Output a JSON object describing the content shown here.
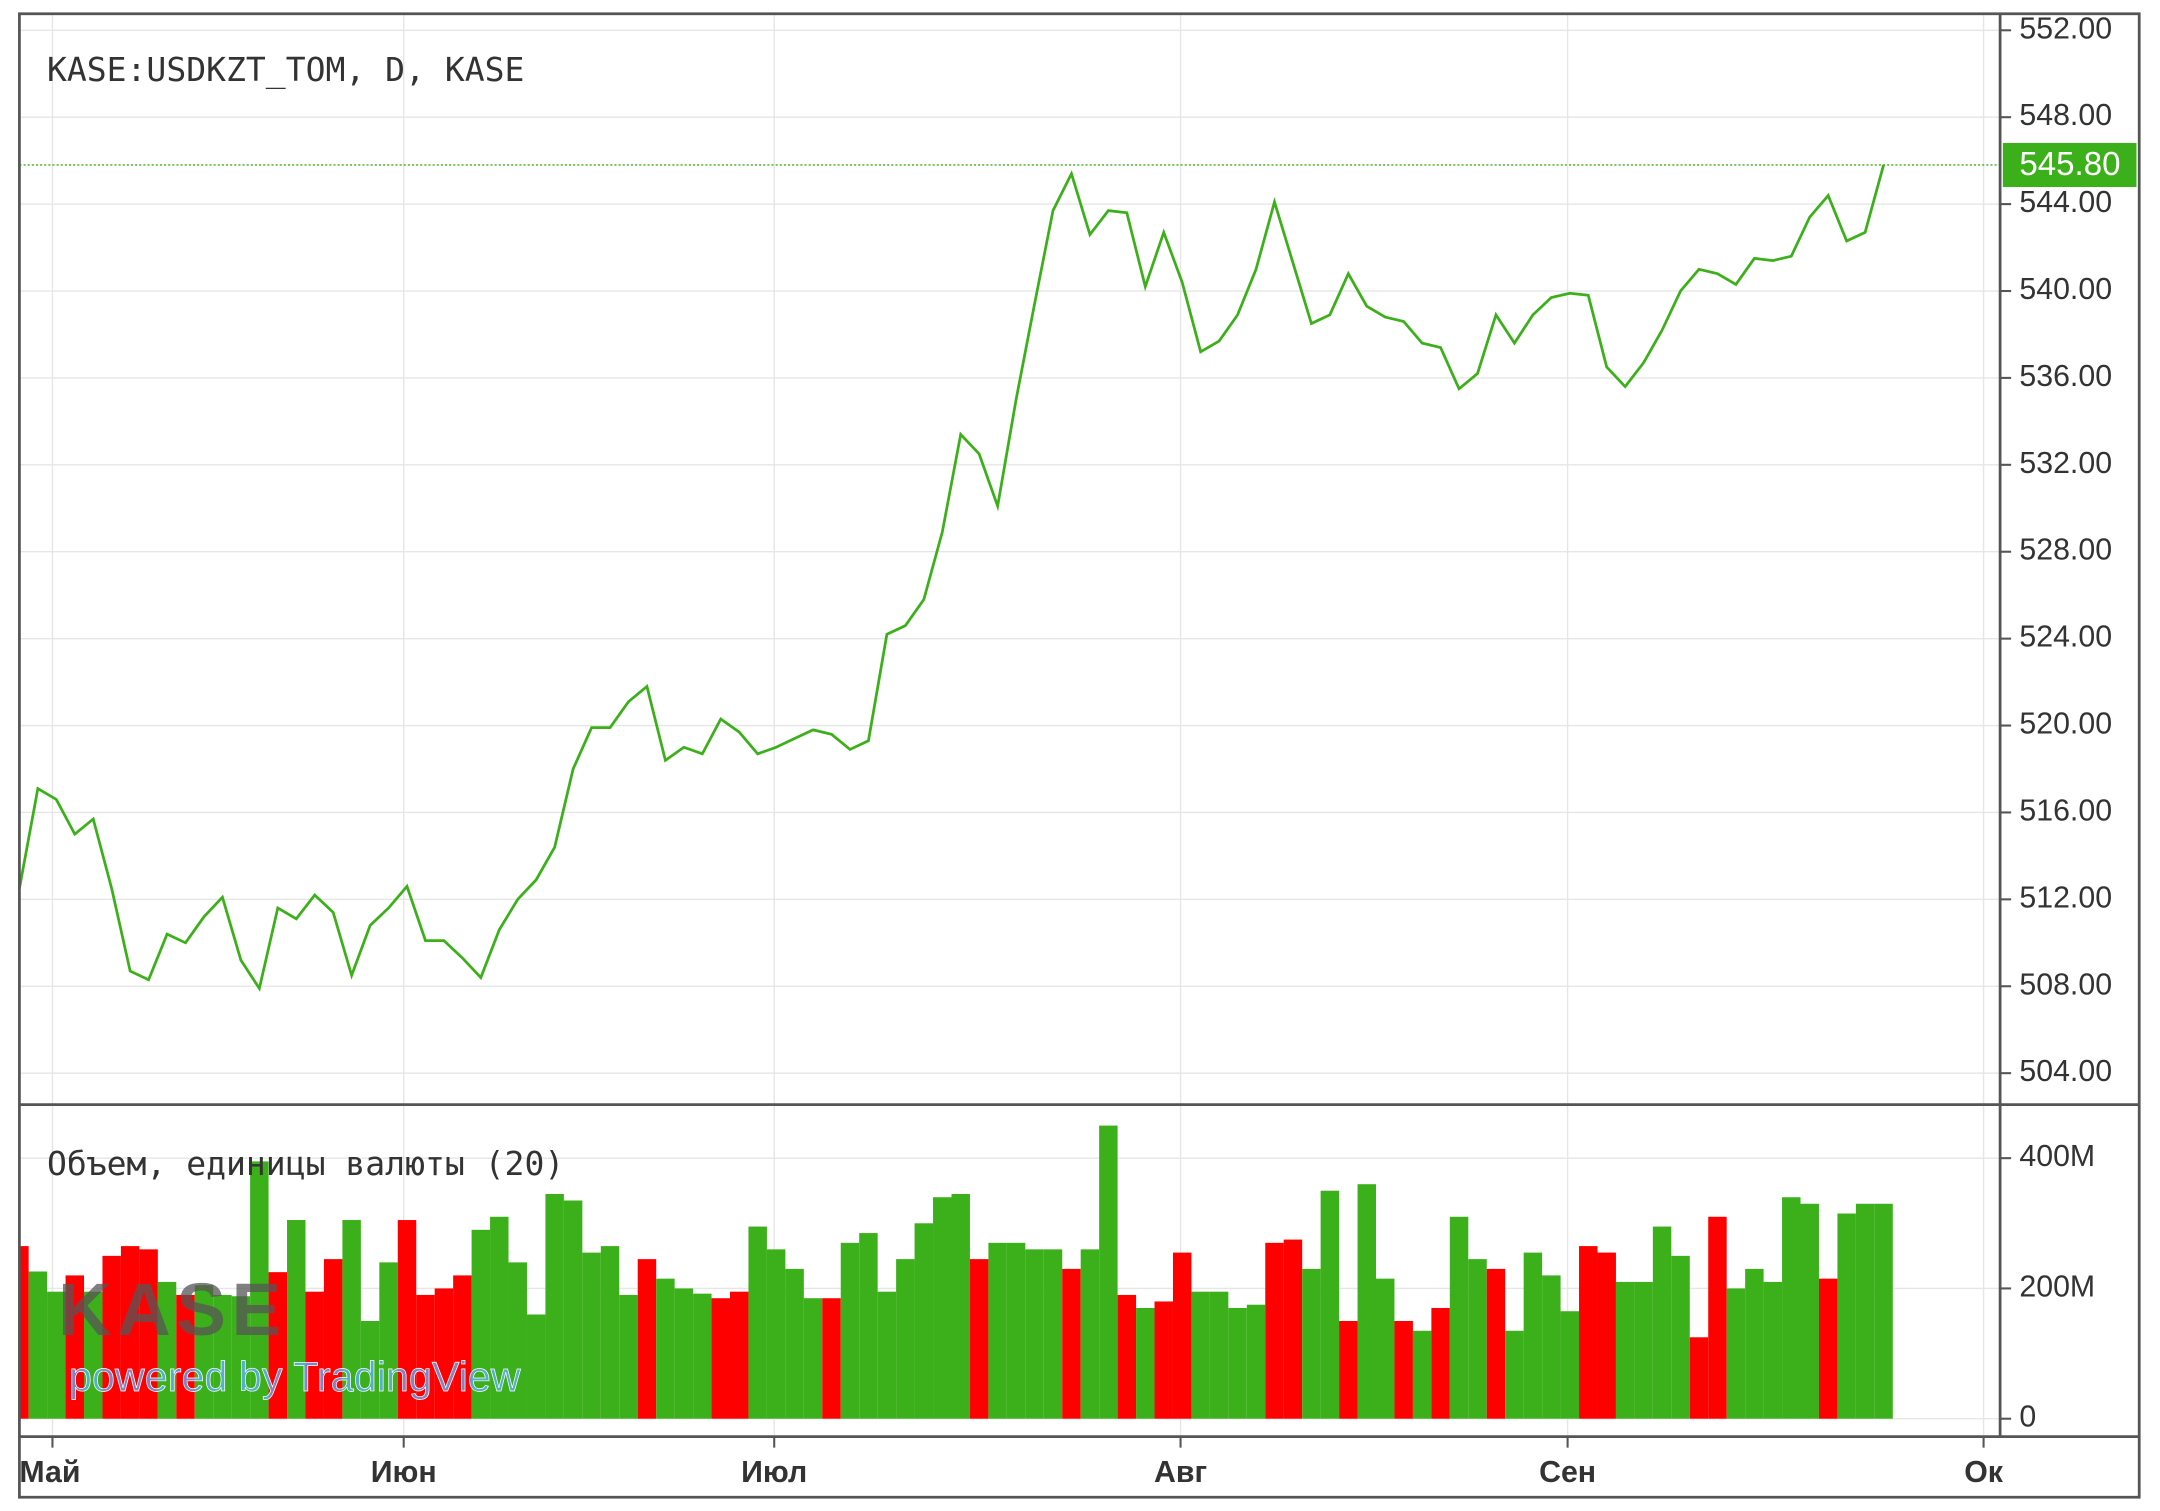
{
  "chart_data": [
    {
      "type": "line",
      "title": "KASE:USDKZT_TOM, D, KASE",
      "color": "#3cb01a",
      "values": [
        512.5,
        517.1,
        516.6,
        515.0,
        515.7,
        512.5,
        508.7,
        508.3,
        510.4,
        510.0,
        511.2,
        512.1,
        509.2,
        507.9,
        511.6,
        511.1,
        512.2,
        511.4,
        508.5,
        510.8,
        511.6,
        512.6,
        510.1,
        510.1,
        509.3,
        508.4,
        510.6,
        512.0,
        512.9,
        514.4,
        518.0,
        519.9,
        519.9,
        521.1,
        521.8,
        518.4,
        519.0,
        518.7,
        520.3,
        519.7,
        518.7,
        519.0,
        519.4,
        519.8,
        519.6,
        518.9,
        519.3,
        524.2,
        524.6,
        525.8,
        528.9,
        533.4,
        532.5,
        530.1,
        535.0,
        539.4,
        543.7,
        545.4,
        542.6,
        543.7,
        543.6,
        540.2,
        542.7,
        540.4,
        537.2,
        537.7,
        538.9,
        541.0,
        544.1,
        541.3,
        538.5,
        538.9,
        540.8,
        539.3,
        538.8,
        538.6,
        537.6,
        537.4,
        535.5,
        536.2,
        538.9,
        537.6,
        538.9,
        539.7,
        539.9,
        539.8,
        536.5,
        535.6,
        536.7,
        538.2,
        540.0,
        541.0,
        540.8,
        540.3,
        541.5,
        541.4,
        541.6,
        543.4,
        544.4,
        542.3,
        542.7,
        545.8
      ],
      "ylim": [
        502.55,
        552.76
      ],
      "yticks": [
        {
          "value": 504,
          "label": "504.00"
        },
        {
          "value": 508,
          "label": "508.00"
        },
        {
          "value": 512,
          "label": "512.00"
        },
        {
          "value": 516,
          "label": "516.00"
        },
        {
          "value": 520,
          "label": "520.00"
        },
        {
          "value": 524,
          "label": "524.00"
        },
        {
          "value": 528,
          "label": "528.00"
        },
        {
          "value": 532,
          "label": "532.00"
        },
        {
          "value": 536,
          "label": "536.00"
        },
        {
          "value": 540,
          "label": "540.00"
        },
        {
          "value": 544,
          "label": "544.00"
        },
        {
          "value": 548,
          "label": "548.00"
        },
        {
          "value": 552,
          "label": "552.00"
        }
      ],
      "last_price": {
        "value": 545.8,
        "label": "545.80"
      },
      "grid": true
    },
    {
      "type": "bar",
      "title": "Объем, единицы валюты (20)",
      "values": [
        265000000,
        226000000,
        195000000,
        220000000,
        195000000,
        250000000,
        265000000,
        260000000,
        210000000,
        190000000,
        205000000,
        190000000,
        188000000,
        395000000,
        225000000,
        305000000,
        195000000,
        245000000,
        305000000,
        150000000,
        240000000,
        305000000,
        190000000,
        200000000,
        220000000,
        290000000,
        310000000,
        240000000,
        160000000,
        345000000,
        335000000,
        255000000,
        265000000,
        190000000,
        245000000,
        215000000,
        200000000,
        192000000,
        185000000,
        195000000,
        295000000,
        260000000,
        230000000,
        185000000,
        185000000,
        270000000,
        285000000,
        195000000,
        245000000,
        300000000,
        340000000,
        345000000,
        245000000,
        270000000,
        270000000,
        260000000,
        260000000,
        230000000,
        260000000,
        450000000,
        190000000,
        170000000,
        180000000,
        255000000,
        195000000,
        195000000,
        170000000,
        175000000,
        270000000,
        275000000,
        230000000,
        350000000,
        150000000,
        360000000,
        215000000,
        150000000,
        135000000,
        170000000,
        310000000,
        245000000,
        230000000,
        135000000,
        255000000,
        220000000,
        165000000,
        265000000,
        255000000,
        210000000,
        210000000,
        295000000,
        250000000,
        125000000,
        310000000,
        200000000,
        230000000,
        210000000,
        340000000,
        330000000,
        215000000,
        315000000,
        330000000,
        330000000
      ],
      "colors": [
        "#ff0000",
        "#3cb01a",
        "#3cb01a",
        "#ff0000",
        "#3cb01a",
        "#ff0000",
        "#ff0000",
        "#ff0000",
        "#3cb01a",
        "#ff0000",
        "#3cb01a",
        "#3cb01a",
        "#3cb01a",
        "#3cb01a",
        "#ff0000",
        "#3cb01a",
        "#ff0000",
        "#ff0000",
        "#3cb01a",
        "#3cb01a",
        "#3cb01a",
        "#ff0000",
        "#ff0000",
        "#ff0000",
        "#ff0000",
        "#3cb01a",
        "#3cb01a",
        "#3cb01a",
        "#3cb01a",
        "#3cb01a",
        "#3cb01a",
        "#3cb01a",
        "#3cb01a",
        "#3cb01a",
        "#ff0000",
        "#3cb01a",
        "#3cb01a",
        "#3cb01a",
        "#ff0000",
        "#ff0000",
        "#3cb01a",
        "#3cb01a",
        "#3cb01a",
        "#3cb01a",
        "#ff0000",
        "#3cb01a",
        "#3cb01a",
        "#3cb01a",
        "#3cb01a",
        "#3cb01a",
        "#3cb01a",
        "#3cb01a",
        "#ff0000",
        "#3cb01a",
        "#3cb01a",
        "#3cb01a",
        "#3cb01a",
        "#ff0000",
        "#3cb01a",
        "#3cb01a",
        "#ff0000",
        "#3cb01a",
        "#ff0000",
        "#ff0000",
        "#3cb01a",
        "#3cb01a",
        "#3cb01a",
        "#3cb01a",
        "#ff0000",
        "#ff0000",
        "#3cb01a",
        "#3cb01a",
        "#ff0000",
        "#3cb01a",
        "#3cb01a",
        "#ff0000",
        "#3cb01a",
        "#ff0000",
        "#3cb01a",
        "#3cb01a",
        "#ff0000",
        "#3cb01a",
        "#3cb01a",
        "#3cb01a",
        "#3cb01a",
        "#ff0000",
        "#ff0000",
        "#3cb01a",
        "#3cb01a",
        "#3cb01a",
        "#3cb01a",
        "#ff0000",
        "#ff0000",
        "#3cb01a",
        "#3cb01a",
        "#3cb01a",
        "#3cb01a",
        "#3cb01a",
        "#ff0000",
        "#3cb01a",
        "#3cb01a",
        "#3cb01a"
      ],
      "ylim": [
        -27500000,
        480000000
      ],
      "yticks": [
        0,
        {
          "value": 200000000,
          "label": "200M"
        },
        {
          "value": 400000000,
          "label": "400M"
        }
      ],
      "grid": true
    }
  ],
  "x_axis_labels": [
    "Май",
    "Июн",
    "Июл",
    "Авг",
    "Сен",
    "Ок"
  ],
  "watermark": {
    "logo": "KASE",
    "caption": "powered by TradingView"
  }
}
